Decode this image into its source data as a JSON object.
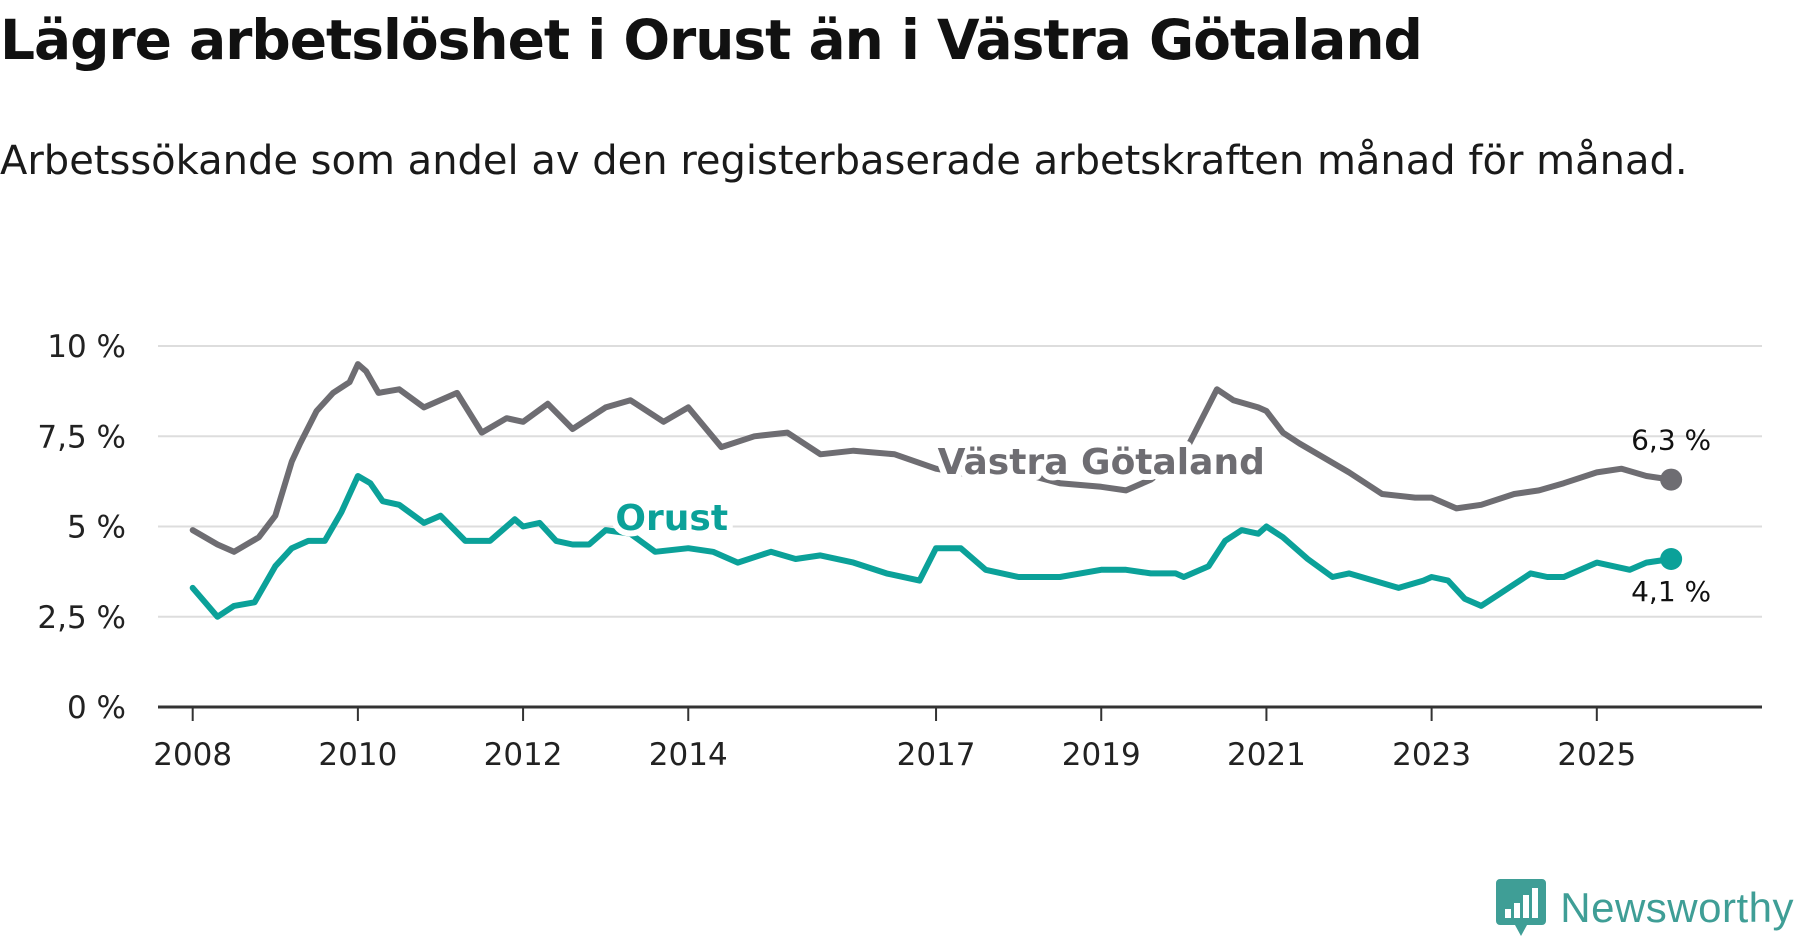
{
  "title": "Lägre arbetslöshet i Orust än i Västra Götaland",
  "subtitle": "Arbetssökande som andel av den registerbaserade arbetskraften månad för månad.",
  "brand": {
    "name": "Newsworthy",
    "icon": "newsworthy-logo-icon",
    "color": "#3f9e96"
  },
  "colors": {
    "orust": "#0ba199",
    "vastra": "#6e6d72",
    "grid": "#dddddd",
    "axis": "#333333"
  },
  "chart_data": {
    "type": "line",
    "title": "Lägre arbetslöshet i Orust än i Västra Götaland",
    "subtitle": "Arbetssökande som andel av den registerbaserade arbetskraften månad för månad.",
    "xlabel": "",
    "ylabel": "",
    "ylim": [
      0,
      10
    ],
    "xlim": [
      2007.58,
      2027.0
    ],
    "grid": true,
    "yticks": [
      0,
      2.5,
      5,
      7.5,
      10
    ],
    "ytick_labels": [
      "0 %",
      "2,5 %",
      "5 %",
      "7,5 %",
      "10 %"
    ],
    "xticks": [
      2008,
      2010,
      2012,
      2014,
      2017,
      2019,
      2021,
      2023,
      2025
    ],
    "xtick_labels": [
      "2008",
      "2010",
      "2012",
      "2014",
      "2017",
      "2019",
      "2021",
      "2023",
      "2025"
    ],
    "series": [
      {
        "name": "Västra Götaland",
        "key": "vastra",
        "end_label": "6,3 %",
        "x": [
          2008.0,
          2008.3,
          2008.5,
          2008.8,
          2009.0,
          2009.2,
          2009.3,
          2009.5,
          2009.7,
          2009.9,
          2010.0,
          2010.1,
          2010.25,
          2010.5,
          2010.8,
          2011.2,
          2011.5,
          2011.8,
          2012.0,
          2012.3,
          2012.6,
          2013.0,
          2013.3,
          2013.7,
          2014.0,
          2014.4,
          2014.8,
          2015.2,
          2015.6,
          2016.0,
          2016.5,
          2017.0,
          2017.5,
          2018.0,
          2018.5,
          2019.0,
          2019.3,
          2019.6,
          2020.0,
          2020.4,
          2020.6,
          2020.9,
          2021.0,
          2021.2,
          2021.4,
          2021.7,
          2022.0,
          2022.4,
          2022.8,
          2023.0,
          2023.3,
          2023.6,
          2024.0,
          2024.3,
          2024.6,
          2025.0,
          2025.3,
          2025.6,
          2025.9
        ],
        "values": [
          4.9,
          4.5,
          4.3,
          4.7,
          5.3,
          6.8,
          7.3,
          8.2,
          8.7,
          9.0,
          9.5,
          9.3,
          8.7,
          8.8,
          8.3,
          8.7,
          7.6,
          8.0,
          7.9,
          8.4,
          7.7,
          8.3,
          8.5,
          7.9,
          8.3,
          7.2,
          7.5,
          7.6,
          7.0,
          7.1,
          7.0,
          6.6,
          6.4,
          6.5,
          6.2,
          6.1,
          6.0,
          6.3,
          7.0,
          8.8,
          8.5,
          8.3,
          8.2,
          7.6,
          7.3,
          6.9,
          6.5,
          5.9,
          5.8,
          5.8,
          5.5,
          5.6,
          5.9,
          6.0,
          6.2,
          6.5,
          6.6,
          6.4,
          6.3
        ]
      },
      {
        "name": "Orust",
        "key": "orust",
        "end_label": "4,1 %",
        "x": [
          2008.0,
          2008.15,
          2008.3,
          2008.5,
          2008.75,
          2009.0,
          2009.2,
          2009.4,
          2009.6,
          2009.8,
          2010.0,
          2010.15,
          2010.3,
          2010.5,
          2010.8,
          2011.0,
          2011.3,
          2011.6,
          2011.9,
          2012.0,
          2012.2,
          2012.4,
          2012.6,
          2012.8,
          2013.0,
          2013.3,
          2013.6,
          2014.0,
          2014.3,
          2014.6,
          2015.0,
          2015.3,
          2015.6,
          2016.0,
          2016.4,
          2016.8,
          2017.0,
          2017.3,
          2017.6,
          2018.0,
          2018.5,
          2019.0,
          2019.3,
          2019.6,
          2019.9,
          2020.0,
          2020.3,
          2020.5,
          2020.7,
          2020.9,
          2021.0,
          2021.2,
          2021.5,
          2021.8,
          2022.0,
          2022.3,
          2022.6,
          2022.9,
          2023.0,
          2023.2,
          2023.4,
          2023.6,
          2023.8,
          2024.0,
          2024.2,
          2024.4,
          2024.6,
          2024.8,
          2025.0,
          2025.2,
          2025.4,
          2025.6,
          2025.9
        ],
        "values": [
          3.3,
          2.9,
          2.5,
          2.8,
          2.9,
          3.9,
          4.4,
          4.6,
          4.6,
          5.4,
          6.4,
          6.2,
          5.7,
          5.6,
          5.1,
          5.3,
          4.6,
          4.6,
          5.2,
          5.0,
          5.1,
          4.6,
          4.5,
          4.5,
          4.9,
          4.8,
          4.3,
          4.4,
          4.3,
          4.0,
          4.3,
          4.1,
          4.2,
          4.0,
          3.7,
          3.5,
          4.4,
          4.4,
          3.8,
          3.6,
          3.6,
          3.8,
          3.8,
          3.7,
          3.7,
          3.6,
          3.9,
          4.6,
          4.9,
          4.8,
          5.0,
          4.7,
          4.1,
          3.6,
          3.7,
          3.5,
          3.3,
          3.5,
          3.6,
          3.5,
          3.0,
          2.8,
          3.1,
          3.4,
          3.7,
          3.6,
          3.6,
          3.8,
          4.0,
          3.9,
          3.8,
          4.0,
          4.1
        ]
      }
    ]
  }
}
